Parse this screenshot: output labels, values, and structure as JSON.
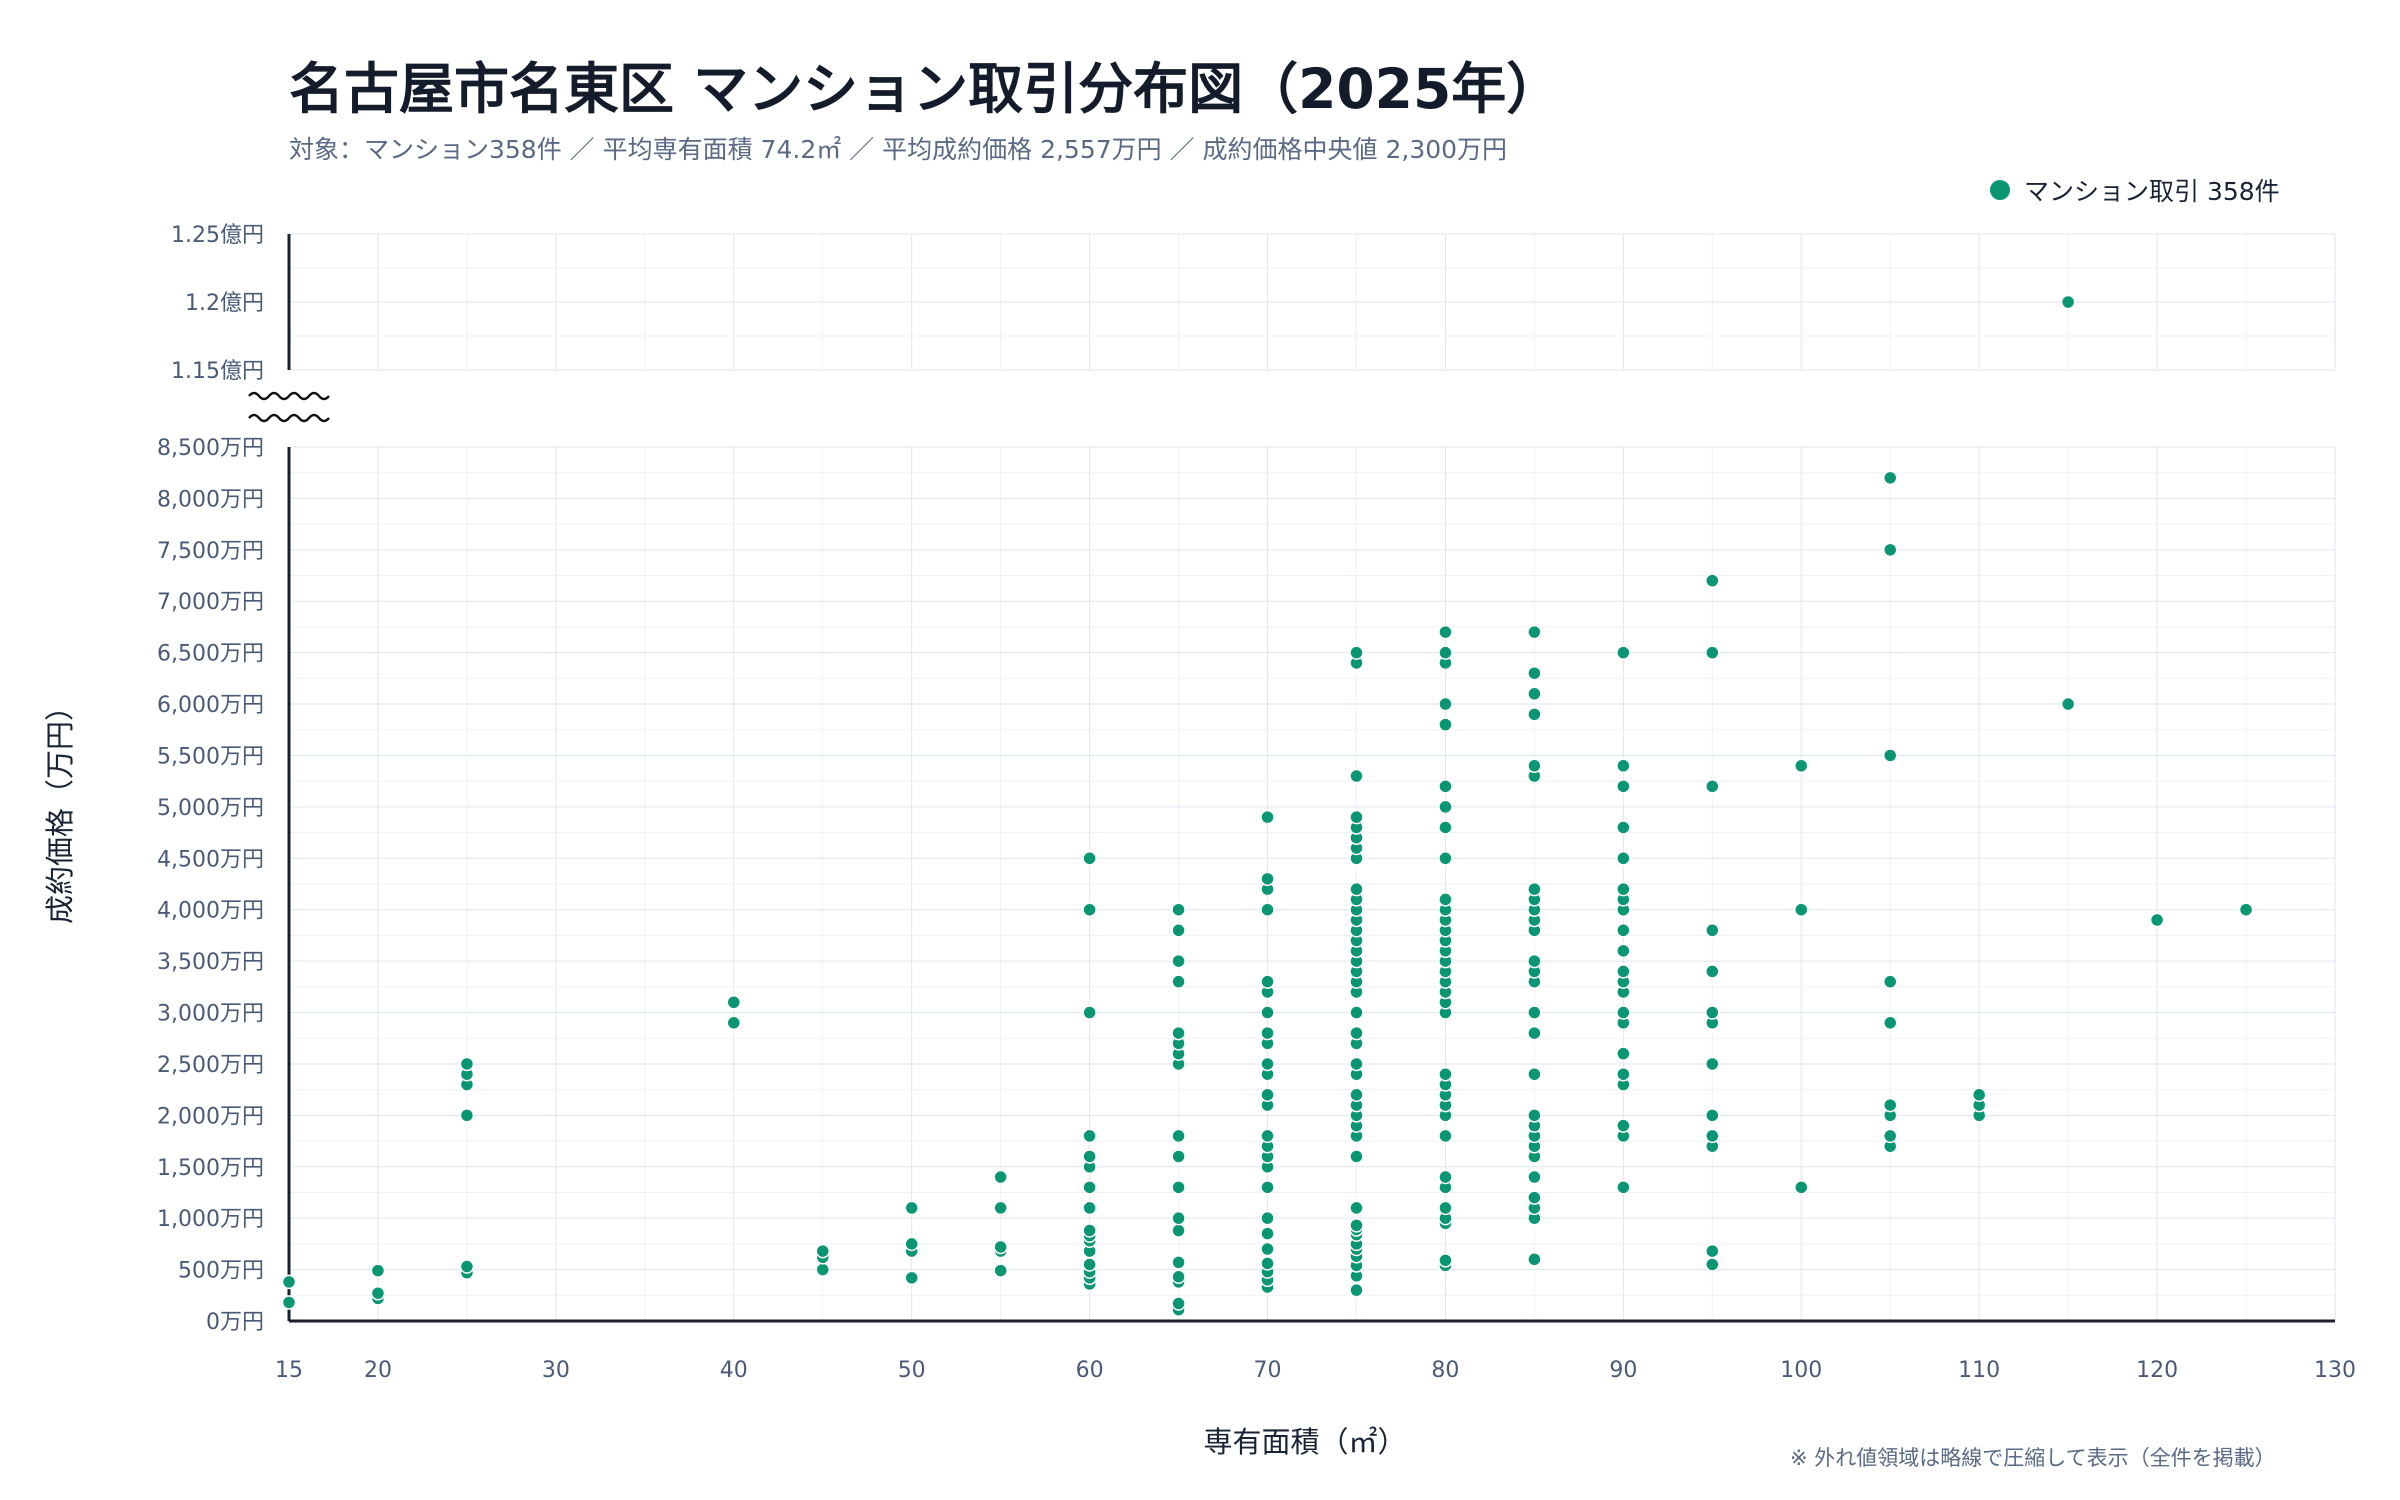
{
  "chart_data": {
    "type": "scatter",
    "title": "名古屋市名東区 マンション取引分布図（2025年）",
    "subtitle": "対象：マンション358件 ／ 平均専有面積 74.2㎡ ／ 平均成約価格 2,557万円 ／ 成約価格中央値 2,300万円",
    "legend": "マンション取引 358件",
    "legend_position": "top-right",
    "xlabel": "専有面積（㎡）",
    "ylabel": "成約価格（万円）",
    "note": "※ 外れ値領域は略線で圧縮して表示（全件を掲載）",
    "marker_color": "#0b9673",
    "grid": true,
    "axis_break": true,
    "xlim": [
      15,
      130
    ],
    "x_ticks": [
      "15",
      "20",
      "30",
      "40",
      "50",
      "60",
      "70",
      "80",
      "90",
      "100",
      "110",
      "120",
      "130"
    ],
    "ylim_lower": [
      0,
      8500
    ],
    "y_ticks_lower": [
      "0万円",
      "500万円",
      "1,000万円",
      "1,500万円",
      "2,000万円",
      "2,500万円",
      "3,000万円",
      "3,500万円",
      "4,000万円",
      "4,500万円",
      "5,000万円",
      "5,500万円",
      "6,000万円",
      "6,500万円",
      "7,000万円",
      "7,500万円",
      "8,000万円",
      "8,500万円"
    ],
    "ylim_upper": [
      11500,
      12500
    ],
    "y_ticks_upper": [
      "1.15億円",
      "1.2億円",
      "1.25億円"
    ],
    "points_by_x": [
      {
        "x": 15,
        "y": [
          180,
          380
        ]
      },
      {
        "x": 20,
        "y": [
          220,
          270,
          490
        ]
      },
      {
        "x": 25,
        "y": [
          470,
          530,
          2000,
          2300,
          2400,
          2500
        ]
      },
      {
        "x": 40,
        "y": [
          2900,
          3100
        ]
      },
      {
        "x": 45,
        "y": [
          500,
          620,
          680
        ]
      },
      {
        "x": 50,
        "y": [
          420,
          680,
          750,
          1100
        ]
      },
      {
        "x": 55,
        "y": [
          490,
          680,
          720,
          1100,
          1400
        ]
      },
      {
        "x": 60,
        "y": [
          360,
          420,
          480,
          550,
          680,
          780,
          830,
          880,
          1100,
          1300,
          1500,
          1600,
          1800,
          3000,
          4000,
          4500
        ]
      },
      {
        "x": 65,
        "y": [
          110,
          170,
          380,
          430,
          570,
          880,
          1000,
          1300,
          1600,
          1800,
          2500,
          2600,
          2700,
          2800,
          3300,
          3500,
          3800,
          4000
        ]
      },
      {
        "x": 70,
        "y": [
          330,
          400,
          480,
          560,
          700,
          850,
          1000,
          1300,
          1500,
          1600,
          1700,
          1800,
          2100,
          2200,
          2400,
          2500,
          2700,
          2800,
          3000,
          3200,
          3300,
          4000,
          4200,
          4300,
          4900
        ]
      },
      {
        "x": 75,
        "y": [
          300,
          440,
          540,
          630,
          700,
          750,
          840,
          890,
          930,
          1100,
          1600,
          1800,
          1900,
          2000,
          2100,
          2200,
          2400,
          2500,
          2700,
          2800,
          3000,
          3200,
          3300,
          3400,
          3500,
          3600,
          3700,
          3800,
          3900,
          4000,
          4100,
          4200,
          4500,
          4600,
          4700,
          4800,
          4900,
          5300,
          6400,
          6500
        ]
      },
      {
        "x": 80,
        "y": [
          540,
          590,
          950,
          1000,
          1100,
          1300,
          1400,
          1800,
          2000,
          2100,
          2200,
          2300,
          2400,
          3000,
          3100,
          3200,
          3300,
          3400,
          3500,
          3600,
          3700,
          3800,
          3900,
          4000,
          4100,
          4500,
          4800,
          5000,
          5200,
          5800,
          6000,
          6400,
          6500,
          6700
        ]
      },
      {
        "x": 85,
        "y": [
          600,
          1000,
          1100,
          1200,
          1400,
          1600,
          1700,
          1800,
          1900,
          2000,
          2400,
          2800,
          3000,
          3300,
          3400,
          3500,
          3800,
          3900,
          4000,
          4100,
          4200,
          5300,
          5400,
          5900,
          6100,
          6300,
          6700
        ]
      },
      {
        "x": 90,
        "y": [
          1300,
          1800,
          1900,
          2300,
          2400,
          2600,
          2900,
          3000,
          3200,
          3300,
          3400,
          3600,
          3800,
          4000,
          4100,
          4200,
          4500,
          4800,
          5200,
          5400,
          6500
        ]
      },
      {
        "x": 95,
        "y": [
          550,
          680,
          1700,
          1800,
          2000,
          2500,
          2900,
          3000,
          3400,
          3800,
          5200,
          6500,
          7200
        ]
      },
      {
        "x": 100,
        "y": [
          1300,
          4000,
          5400
        ]
      },
      {
        "x": 105,
        "y": [
          1700,
          1800,
          2000,
          2100,
          2900,
          3300,
          5500,
          7500,
          8200
        ]
      },
      {
        "x": 110,
        "y": [
          2000,
          2100,
          2200
        ]
      },
      {
        "x": 115,
        "y": [
          6000,
          12000
        ]
      },
      {
        "x": 120,
        "y": [
          3900
        ]
      },
      {
        "x": 125,
        "y": [
          4000
        ]
      }
    ]
  }
}
